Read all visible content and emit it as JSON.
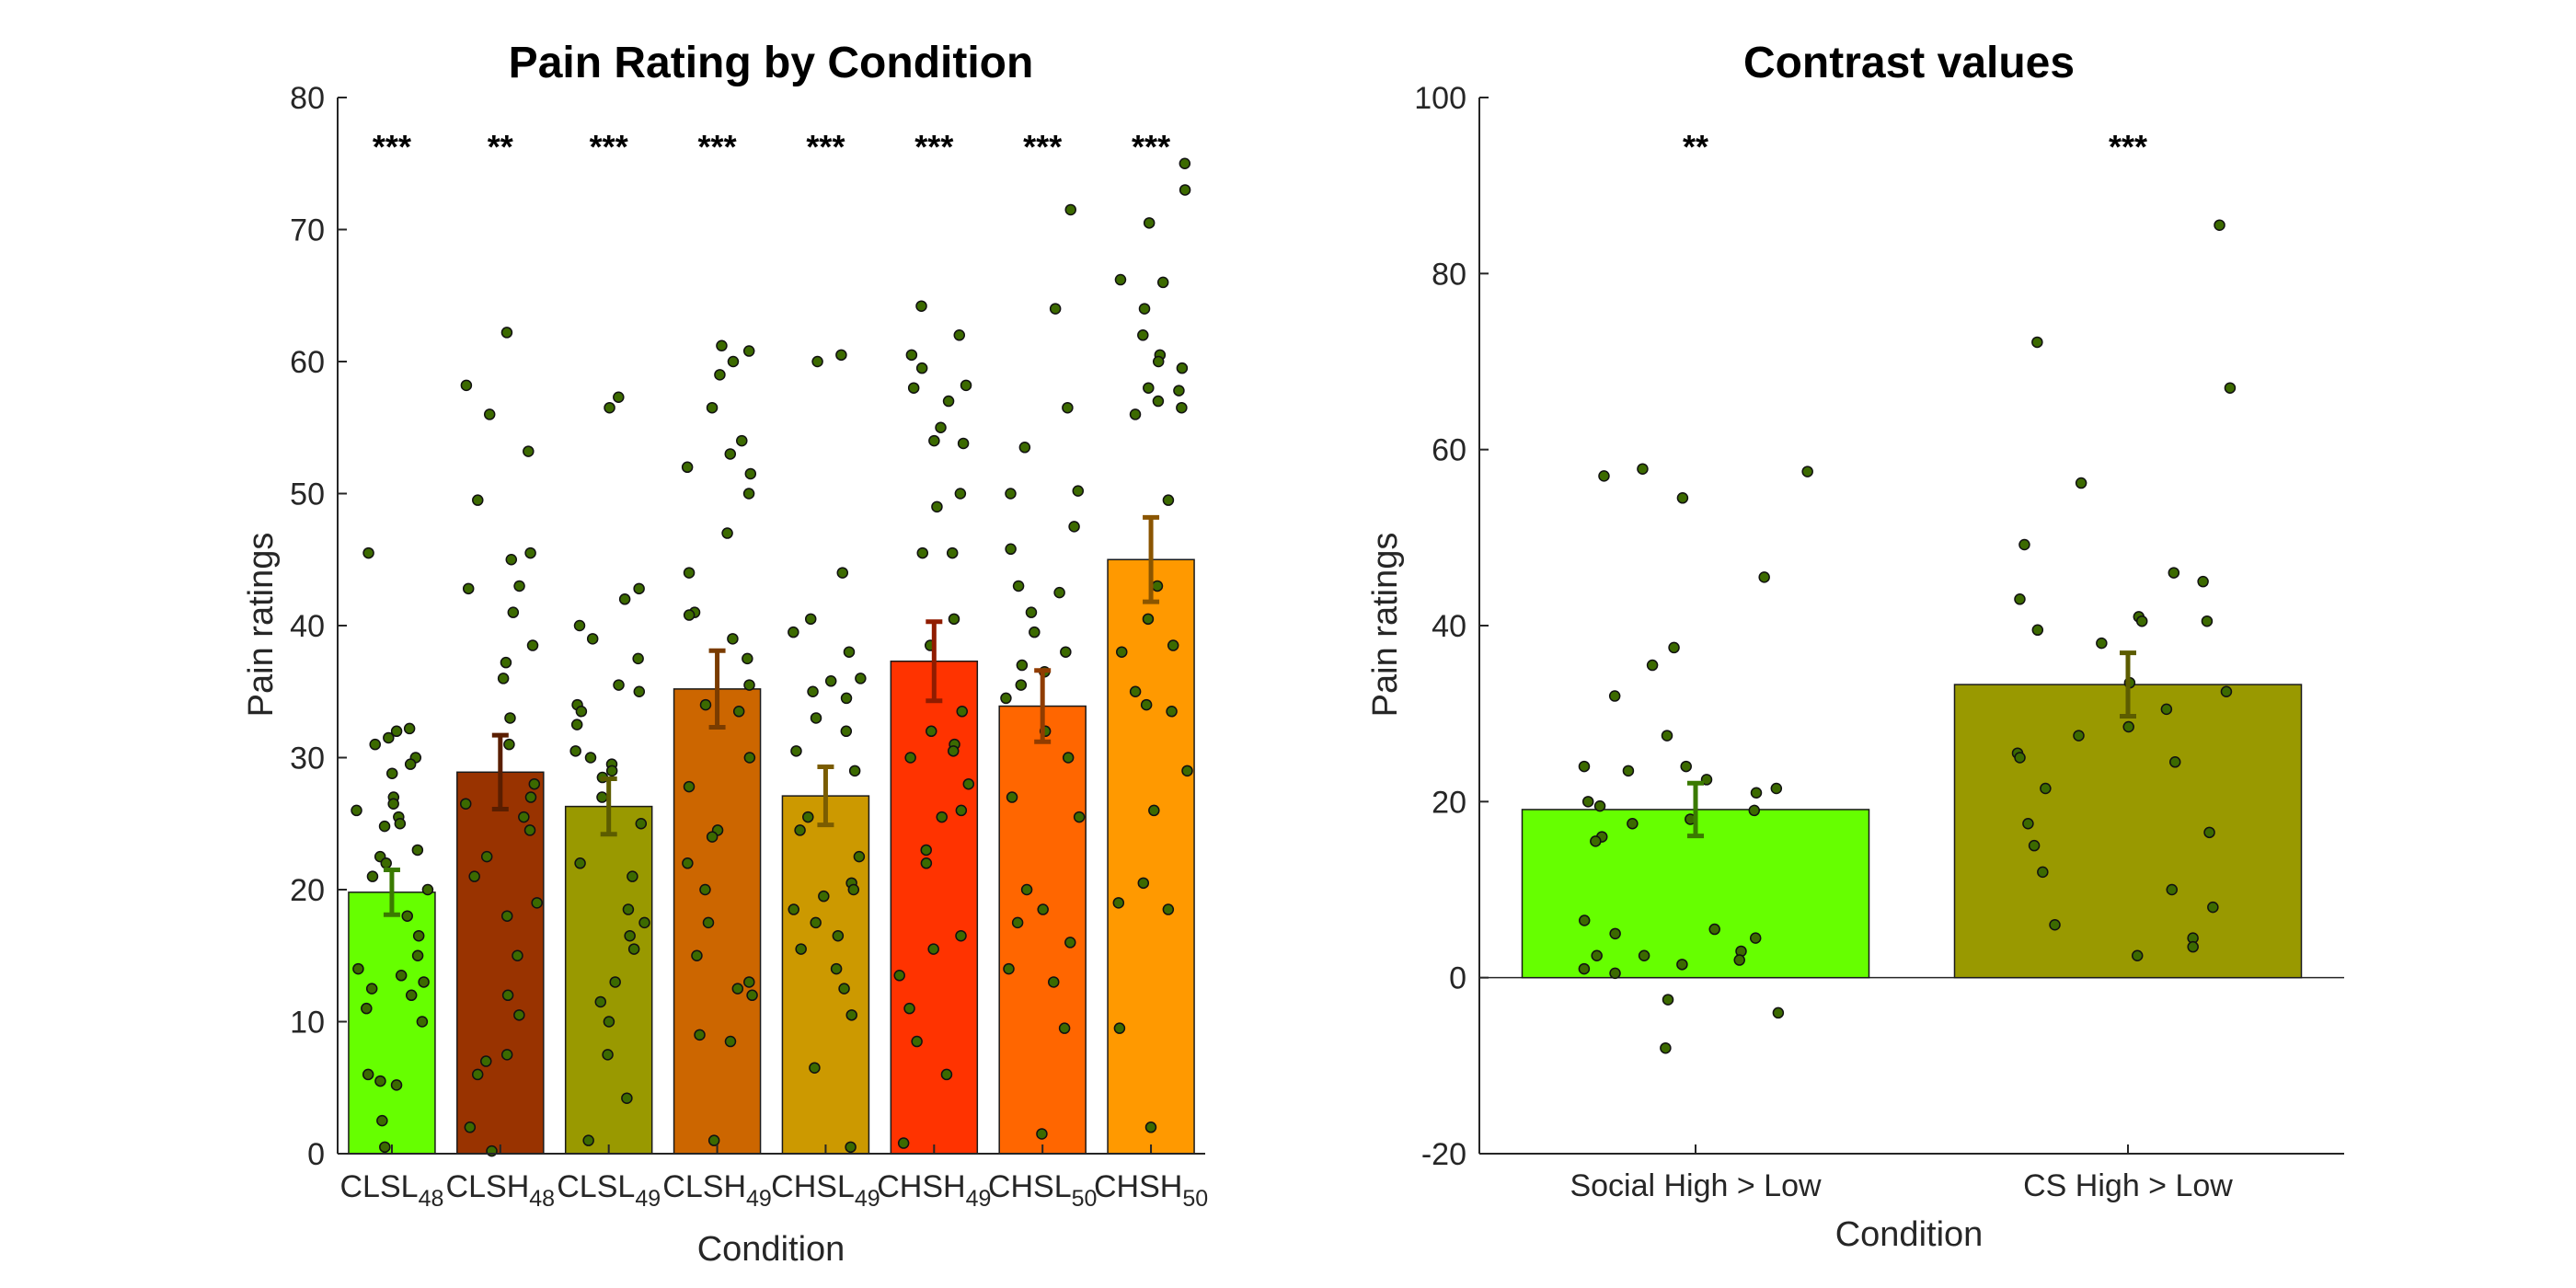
{
  "figure": {
    "background": "#ffffff"
  },
  "chart_data": [
    {
      "type": "bar",
      "title": "Pain Rating by Condition",
      "xlabel": "Condition",
      "ylabel": "Pain ratings",
      "ylim": [
        0,
        80
      ],
      "yticks": [
        0,
        10,
        20,
        30,
        40,
        50,
        60,
        70,
        80
      ],
      "grid": false,
      "categories": [
        {
          "label": "CLSL",
          "subscript": "48"
        },
        {
          "label": "CLSH",
          "subscript": "48"
        },
        {
          "label": "CLSL",
          "subscript": "49"
        },
        {
          "label": "CLSH",
          "subscript": "49"
        },
        {
          "label": "CHSL",
          "subscript": "49"
        },
        {
          "label": "CHSH",
          "subscript": "49"
        },
        {
          "label": "CHSL",
          "subscript": "50"
        },
        {
          "label": "CHSH",
          "subscript": "50"
        }
      ],
      "values": [
        19.8,
        28.9,
        26.3,
        35.2,
        27.1,
        37.3,
        33.9,
        45.0
      ],
      "errors": [
        1.7,
        2.8,
        2.1,
        2.9,
        2.2,
        3.0,
        2.7,
        3.2
      ],
      "colors": [
        "#66ff00",
        "#993300",
        "#999900",
        "#cc6600",
        "#cc9900",
        "#ff3300",
        "#ff6600",
        "#ff9900"
      ],
      "significance": [
        "***",
        "**",
        "***",
        "***",
        "***",
        "***",
        "***",
        "***"
      ],
      "points": [
        [
          45.5,
          32.2,
          32.0,
          31.5,
          31.0,
          30.0,
          29.5,
          28.8,
          27.0,
          26.5,
          26.0,
          25.5,
          25.0,
          24.8,
          23.0,
          22.5,
          22.0,
          21.0,
          20.0,
          18.0,
          16.5,
          15.0,
          14.0,
          13.5,
          13.0,
          12.5,
          12.0,
          11.0,
          10.0,
          6.0,
          5.5,
          5.2,
          2.5,
          0.5
        ],
        [
          62.2,
          58.2,
          56.0,
          53.2,
          49.5,
          45.5,
          45.0,
          43.0,
          42.8,
          41.0,
          38.5,
          37.2,
          36.0,
          33.0,
          31.0,
          28.0,
          27.0,
          26.5,
          25.5,
          24.5,
          22.5,
          21.0,
          19.0,
          18.0,
          15.0,
          12.0,
          10.5,
          7.5,
          7.0,
          6.0,
          2.0,
          0.2
        ],
        [
          57.3,
          56.5,
          42.8,
          42.0,
          40.0,
          39.0,
          37.5,
          35.5,
          35.0,
          34.0,
          33.5,
          32.5,
          30.5,
          30.0,
          29.5,
          29.0,
          28.5,
          27.0,
          25.0,
          22.0,
          21.0,
          18.5,
          17.5,
          16.5,
          15.5,
          13.0,
          11.5,
          10.0,
          7.5,
          4.2,
          1.0
        ],
        [
          61.2,
          60.8,
          60.0,
          59.0,
          56.5,
          54.0,
          53.0,
          52.0,
          51.5,
          50.0,
          47.0,
          44.0,
          41.0,
          40.8,
          39.0,
          37.5,
          35.5,
          34.0,
          33.5,
          30.0,
          27.8,
          24.5,
          24.0,
          22.0,
          20.0,
          17.5,
          15.0,
          13.0,
          12.5,
          12.0,
          9.0,
          8.5,
          1.0
        ],
        [
          60.5,
          60.0,
          44.0,
          40.5,
          39.5,
          38.0,
          36.0,
          35.8,
          35.0,
          34.5,
          33.0,
          32.0,
          30.5,
          29.0,
          25.5,
          24.5,
          22.5,
          20.5,
          20.0,
          19.5,
          18.5,
          17.5,
          16.5,
          15.5,
          14.0,
          12.5,
          10.5,
          6.5,
          0.5
        ],
        [
          64.2,
          62.0,
          60.5,
          59.5,
          58.2,
          58.0,
          57.0,
          55.0,
          54.0,
          53.8,
          50.0,
          49.0,
          45.5,
          45.5,
          40.5,
          38.5,
          33.5,
          32.0,
          31.0,
          30.5,
          30.0,
          28.0,
          26.0,
          25.5,
          23.0,
          22.0,
          16.5,
          15.5,
          13.5,
          11.0,
          8.5,
          6.0,
          0.8
        ],
        [
          71.5,
          64.0,
          56.5,
          53.5,
          50.2,
          50.0,
          47.5,
          45.8,
          43.0,
          42.5,
          41.0,
          39.5,
          38.0,
          37.0,
          36.5,
          35.5,
          34.5,
          32.0,
          30.0,
          27.0,
          25.5,
          20.0,
          18.5,
          17.5,
          16.0,
          14.0,
          13.0,
          9.5,
          1.5
        ],
        [
          75.0,
          73.0,
          70.5,
          66.2,
          66.0,
          64.0,
          62.0,
          60.5,
          60.0,
          59.5,
          58.0,
          57.8,
          57.0,
          56.5,
          56.0,
          49.5,
          43.0,
          40.5,
          38.5,
          38.0,
          35.0,
          34.0,
          33.5,
          29.0,
          26.0,
          20.5,
          19.0,
          18.5,
          9.5,
          2.0
        ]
      ],
      "point_fill": "#3c6a00",
      "error_bar_colors": [
        "#3a7a00",
        "#5a1e00",
        "#5c5c00",
        "#7a3c00",
        "#7a5c00",
        "#901c00",
        "#903c00",
        "#8a5500"
      ]
    },
    {
      "type": "bar",
      "title": "Contrast values",
      "xlabel": "Condition",
      "ylabel": "Pain ratings",
      "ylim": [
        -20,
        100
      ],
      "yticks": [
        -20,
        0,
        20,
        40,
        60,
        80,
        100
      ],
      "grid": false,
      "zero_line": true,
      "categories": [
        {
          "label": "Social High > Low",
          "subscript": ""
        },
        {
          "label": "CS High > Low",
          "subscript": ""
        }
      ],
      "values": [
        19.1,
        33.3
      ],
      "errors": [
        3.0,
        3.6
      ],
      "colors": [
        "#66ff00",
        "#999900"
      ],
      "significance": [
        "**",
        "***"
      ],
      "points": [
        [
          57.8,
          57.5,
          57.0,
          54.5,
          45.5,
          37.5,
          35.5,
          32.0,
          27.5,
          24.0,
          24.0,
          23.5,
          22.5,
          21.5,
          21.0,
          20.0,
          19.5,
          19.0,
          18.0,
          17.5,
          16.0,
          15.5,
          6.5,
          5.5,
          5.0,
          4.5,
          3.0,
          2.5,
          2.5,
          2.0,
          1.5,
          1.0,
          0.5,
          -2.5,
          -4.0,
          -8.0
        ],
        [
          85.5,
          72.2,
          67.0,
          56.2,
          49.2,
          46.0,
          45.0,
          43.0,
          41.0,
          40.5,
          40.5,
          39.5,
          38.0,
          33.5,
          32.5,
          30.5,
          28.5,
          27.5,
          25.5,
          25.0,
          24.5,
          21.5,
          17.5,
          16.5,
          15.0,
          12.0,
          10.0,
          8.0,
          6.0,
          4.5,
          3.5,
          2.5
        ]
      ],
      "point_fill": "#3c6a00",
      "error_bar_colors": [
        "#3a7a00",
        "#5c5c00"
      ]
    }
  ]
}
